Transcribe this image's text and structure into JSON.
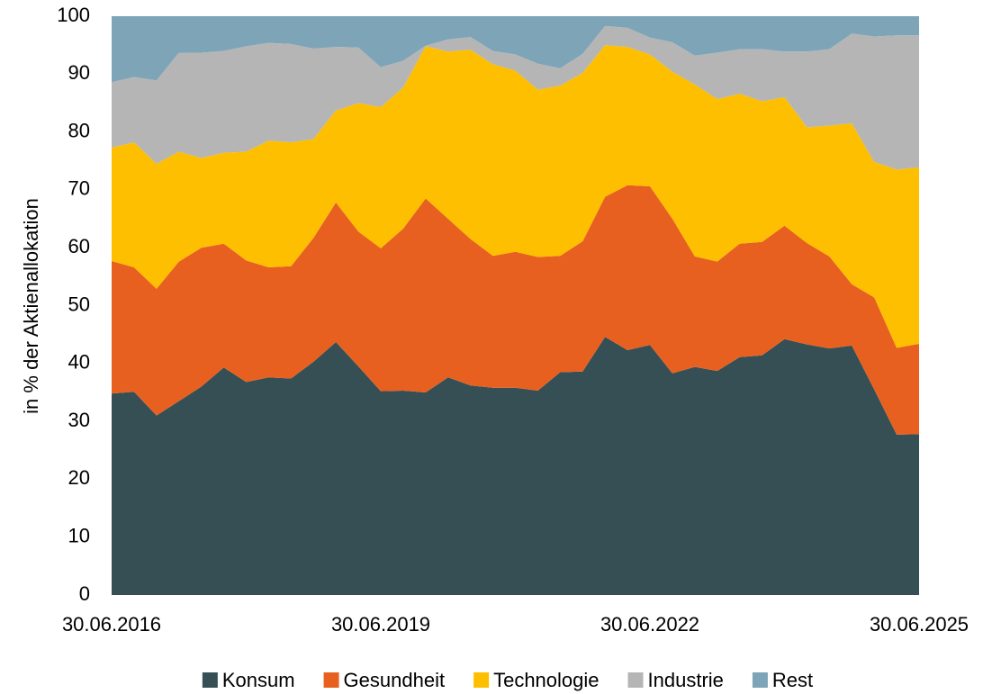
{
  "chart_data": {
    "type": "stacked_area",
    "y_label": "in % der Aktienallokation",
    "categories": [
      "30.06.2016",
      null,
      null,
      null,
      null,
      null,
      null,
      null,
      null,
      null,
      null,
      null,
      "30.06.2019",
      null,
      null,
      null,
      null,
      null,
      null,
      null,
      null,
      null,
      null,
      null,
      "30.06.2022",
      null,
      null,
      null,
      null,
      null,
      null,
      null,
      null,
      null,
      null,
      null,
      "30.06.2025"
    ],
    "series": [
      {
        "name": "Konsum",
        "color": "#364f55",
        "values": [
          34.8,
          35.1,
          31.0,
          33.5,
          36.0,
          39.3,
          36.8,
          37.6,
          37.4,
          40.3,
          43.7,
          39.5,
          35.2,
          35.3,
          35.0,
          37.6,
          36.2,
          35.8,
          35.8,
          35.3,
          38.5,
          38.6,
          44.6,
          42.3,
          43.2,
          38.3,
          39.4,
          38.7,
          41.1,
          41.4,
          44.2,
          43.3,
          42.6,
          43.1,
          35.5,
          27.7,
          27.8
        ]
      },
      {
        "name": "Gesundheit",
        "color": "#e8601f",
        "values": [
          22.9,
          21.5,
          21.9,
          24.1,
          24.0,
          21.4,
          21.0,
          19.0,
          19.4,
          21.4,
          24.1,
          23.3,
          24.7,
          28.0,
          33.5,
          27.4,
          25.3,
          22.8,
          23.5,
          23.1,
          20.1,
          22.5,
          24.2,
          28.5,
          27.4,
          26.7,
          19.1,
          18.9,
          19.6,
          19.6,
          19.6,
          17.5,
          15.9,
          10.6,
          15.9,
          15.0,
          15.6
        ]
      },
      {
        "name": "Technologie",
        "color": "#fdbf00",
        "values": [
          19.6,
          21.6,
          21.6,
          19.0,
          15.5,
          15.7,
          18.8,
          21.9,
          21.4,
          17.1,
          15.9,
          22.2,
          24.4,
          24.4,
          26.3,
          28.9,
          32.7,
          33.1,
          31.3,
          28.9,
          29.4,
          29.1,
          26.2,
          23.9,
          22.8,
          25.4,
          29.7,
          28.1,
          25.9,
          24.3,
          22.2,
          20.0,
          22.6,
          27.8,
          23.4,
          30.8,
          30.5
        ]
      },
      {
        "name": "Industrie",
        "color": "#b5b5b5",
        "values": [
          11.3,
          11.3,
          14.4,
          17.1,
          18.2,
          17.6,
          18.2,
          16.9,
          17.0,
          15.6,
          11.0,
          9.6,
          6.9,
          4.6,
          0.1,
          2.1,
          2.2,
          2.3,
          2.8,
          4.5,
          3.0,
          3.3,
          3.3,
          3.3,
          2.9,
          5.1,
          5.0,
          8.0,
          7.7,
          9.0,
          7.9,
          13.1,
          13.2,
          15.5,
          21.7,
          23.2,
          22.8
        ]
      },
      {
        "name": "Rest",
        "color": "#7ea4b8",
        "values": [
          11.4,
          10.5,
          11.1,
          6.3,
          6.3,
          6.0,
          5.2,
          4.6,
          4.8,
          5.6,
          5.3,
          5.4,
          8.8,
          7.7,
          5.1,
          4.0,
          3.6,
          6.0,
          6.6,
          8.2,
          9.0,
          6.5,
          1.7,
          2.0,
          3.7,
          4.5,
          6.8,
          6.3,
          5.7,
          5.7,
          6.1,
          6.1,
          5.7,
          3.0,
          3.5,
          3.3,
          3.3
        ]
      }
    ],
    "ylim": [
      0,
      100
    ],
    "yticks": [
      0,
      10,
      20,
      30,
      40,
      50,
      60,
      70,
      80,
      90,
      100
    ],
    "legend": "bottom"
  }
}
